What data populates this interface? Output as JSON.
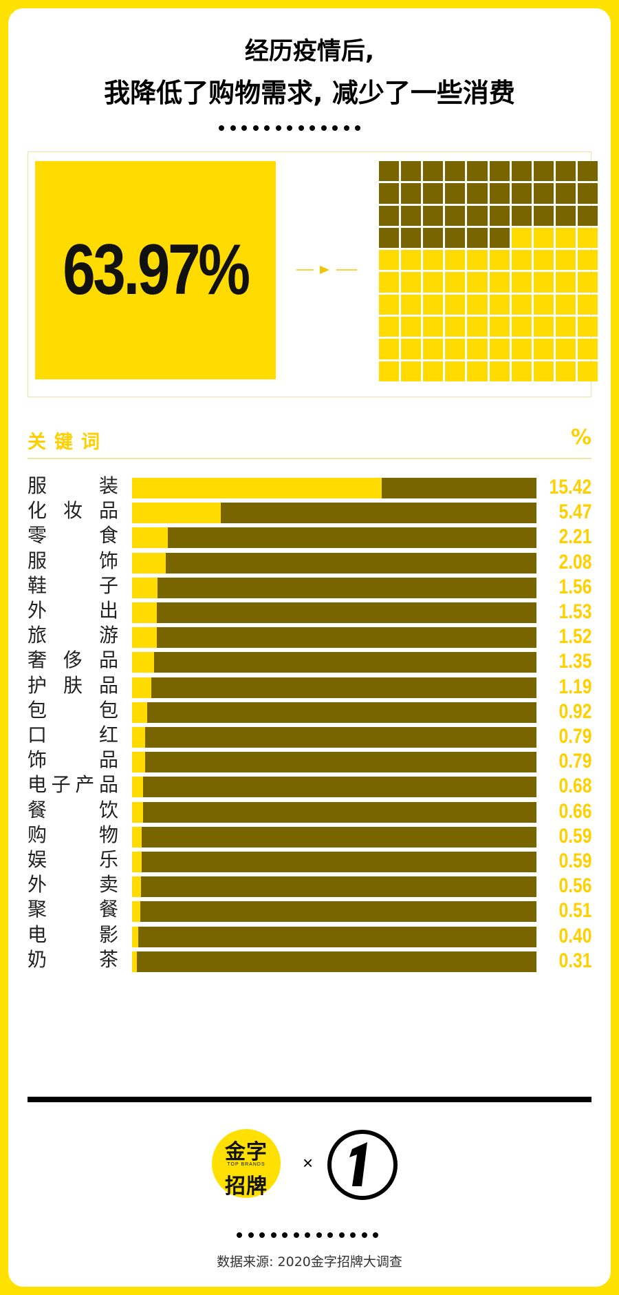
{
  "title": {
    "line1": "经历疫情后,",
    "line2": "我降低了购物需求, 减少了一些消费"
  },
  "hero": {
    "percent_label": "63.97%",
    "waffle_filled_fraction": 0.64,
    "colors": {
      "filled": "#ffdb00",
      "rest": "#786500"
    }
  },
  "table_header": {
    "label": "关键词",
    "unit": "%"
  },
  "chart_data": {
    "type": "bar",
    "orientation": "horizontal",
    "categories": [
      "服装",
      "化妆品",
      "零食",
      "服饰",
      "鞋子",
      "外出",
      "旅游",
      "奢侈品",
      "护肤品",
      "包包",
      "口红",
      "饰品",
      "电子产品",
      "餐饮",
      "购物",
      "娱乐",
      "外卖",
      "聚餐",
      "电影",
      "奶茶"
    ],
    "values": [
      15.42,
      5.47,
      2.21,
      2.08,
      1.56,
      1.53,
      1.52,
      1.35,
      1.19,
      0.92,
      0.79,
      0.79,
      0.68,
      0.66,
      0.59,
      0.59,
      0.56,
      0.51,
      0.4,
      0.31
    ],
    "value_labels": [
      "15.42",
      "5.47",
      "2.21",
      "2.08",
      "1.56",
      "1.53",
      "1.52",
      "1.35",
      "1.19",
      "0.92",
      "0.79",
      "0.79",
      "0.68",
      "0.66",
      "0.59",
      "0.59",
      "0.56",
      "0.51",
      "0.40",
      "0.31"
    ],
    "xlim": [
      0,
      25
    ],
    "colors": {
      "bar": "#ffdb00",
      "track": "#786500",
      "value_text": "#ffd000"
    }
  },
  "footer": {
    "logo_top": "金字",
    "logo_middle": "TOP BRANDS",
    "logo_bottom": "招牌",
    "times_symbol": "×",
    "source": "数据来源: 2020金字招牌大调查"
  }
}
